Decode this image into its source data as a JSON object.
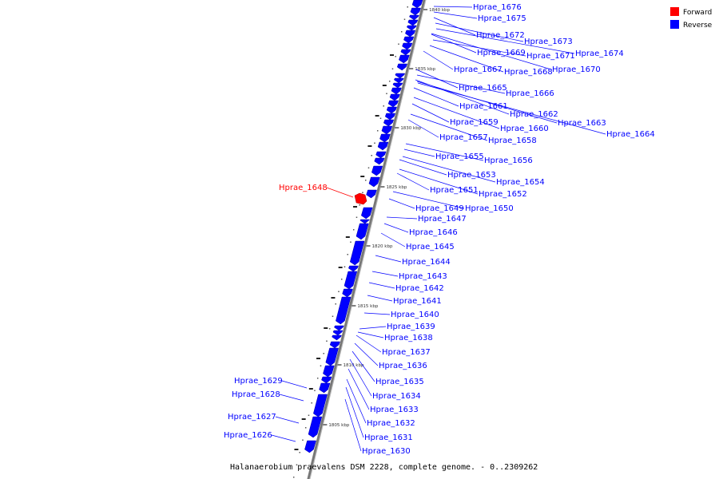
{
  "legend": [
    {
      "label": "Forward",
      "color": "#ff0000"
    },
    {
      "label": "Reverse",
      "color": "#0000ff"
    }
  ],
  "caption": "Halanaerobium praevalens DSM 2228, complete genome. - 0..2309262",
  "ticks": [
    "1840 kbp",
    "1835 kbp",
    "1830 kbp",
    "1825 kbp",
    "1820 kbp",
    "1815 kbp",
    "1810 kbp",
    "1805 kbp"
  ],
  "genes": [
    {
      "name": "Hprae_1676",
      "strand": "reverse"
    },
    {
      "name": "Hprae_1675",
      "strand": "reverse"
    },
    {
      "name": "Hprae_1672",
      "strand": "reverse"
    },
    {
      "name": "Hprae_1673",
      "strand": "reverse"
    },
    {
      "name": "Hprae_1674",
      "strand": "reverse"
    },
    {
      "name": "Hprae_1669",
      "strand": "reverse"
    },
    {
      "name": "Hprae_1671",
      "strand": "reverse"
    },
    {
      "name": "Hprae_1667",
      "strand": "reverse"
    },
    {
      "name": "Hprae_1668",
      "strand": "reverse"
    },
    {
      "name": "Hprae_1670",
      "strand": "reverse"
    },
    {
      "name": "Hprae_1665",
      "strand": "reverse"
    },
    {
      "name": "Hprae_1666",
      "strand": "reverse"
    },
    {
      "name": "Hprae_1661",
      "strand": "reverse"
    },
    {
      "name": "Hprae_1662",
      "strand": "reverse"
    },
    {
      "name": "Hprae_1663",
      "strand": "reverse"
    },
    {
      "name": "Hprae_1659",
      "strand": "reverse"
    },
    {
      "name": "Hprae_1660",
      "strand": "reverse"
    },
    {
      "name": "Hprae_1664",
      "strand": "reverse"
    },
    {
      "name": "Hprae_1657",
      "strand": "reverse"
    },
    {
      "name": "Hprae_1658",
      "strand": "reverse"
    },
    {
      "name": "Hprae_1655",
      "strand": "reverse"
    },
    {
      "name": "Hprae_1656",
      "strand": "reverse"
    },
    {
      "name": "Hprae_1653",
      "strand": "reverse"
    },
    {
      "name": "Hprae_1654",
      "strand": "reverse"
    },
    {
      "name": "Hprae_1648",
      "strand": "forward"
    },
    {
      "name": "Hprae_1651",
      "strand": "reverse"
    },
    {
      "name": "Hprae_1652",
      "strand": "reverse"
    },
    {
      "name": "Hprae_1649",
      "strand": "reverse"
    },
    {
      "name": "Hprae_1650",
      "strand": "reverse"
    },
    {
      "name": "Hprae_1647",
      "strand": "reverse"
    },
    {
      "name": "Hprae_1646",
      "strand": "reverse"
    },
    {
      "name": "Hprae_1645",
      "strand": "reverse"
    },
    {
      "name": "Hprae_1644",
      "strand": "reverse"
    },
    {
      "name": "Hprae_1643",
      "strand": "reverse"
    },
    {
      "name": "Hprae_1642",
      "strand": "reverse"
    },
    {
      "name": "Hprae_1641",
      "strand": "reverse"
    },
    {
      "name": "Hprae_1640",
      "strand": "reverse"
    },
    {
      "name": "Hprae_1639",
      "strand": "reverse"
    },
    {
      "name": "Hprae_1638",
      "strand": "reverse"
    },
    {
      "name": "Hprae_1637",
      "strand": "reverse"
    },
    {
      "name": "Hprae_1636",
      "strand": "reverse"
    },
    {
      "name": "Hprae_1635",
      "strand": "reverse"
    },
    {
      "name": "Hprae_1634",
      "strand": "reverse"
    },
    {
      "name": "Hprae_1633",
      "strand": "reverse"
    },
    {
      "name": "Hprae_1632",
      "strand": "reverse"
    },
    {
      "name": "Hprae_1631",
      "strand": "reverse"
    },
    {
      "name": "Hprae_1630",
      "strand": "reverse"
    },
    {
      "name": "Hprae_1629",
      "strand": "reverse"
    },
    {
      "name": "Hprae_1628",
      "strand": "reverse"
    },
    {
      "name": "Hprae_1627",
      "strand": "reverse"
    },
    {
      "name": "Hprae_1626",
      "strand": "reverse"
    }
  ]
}
